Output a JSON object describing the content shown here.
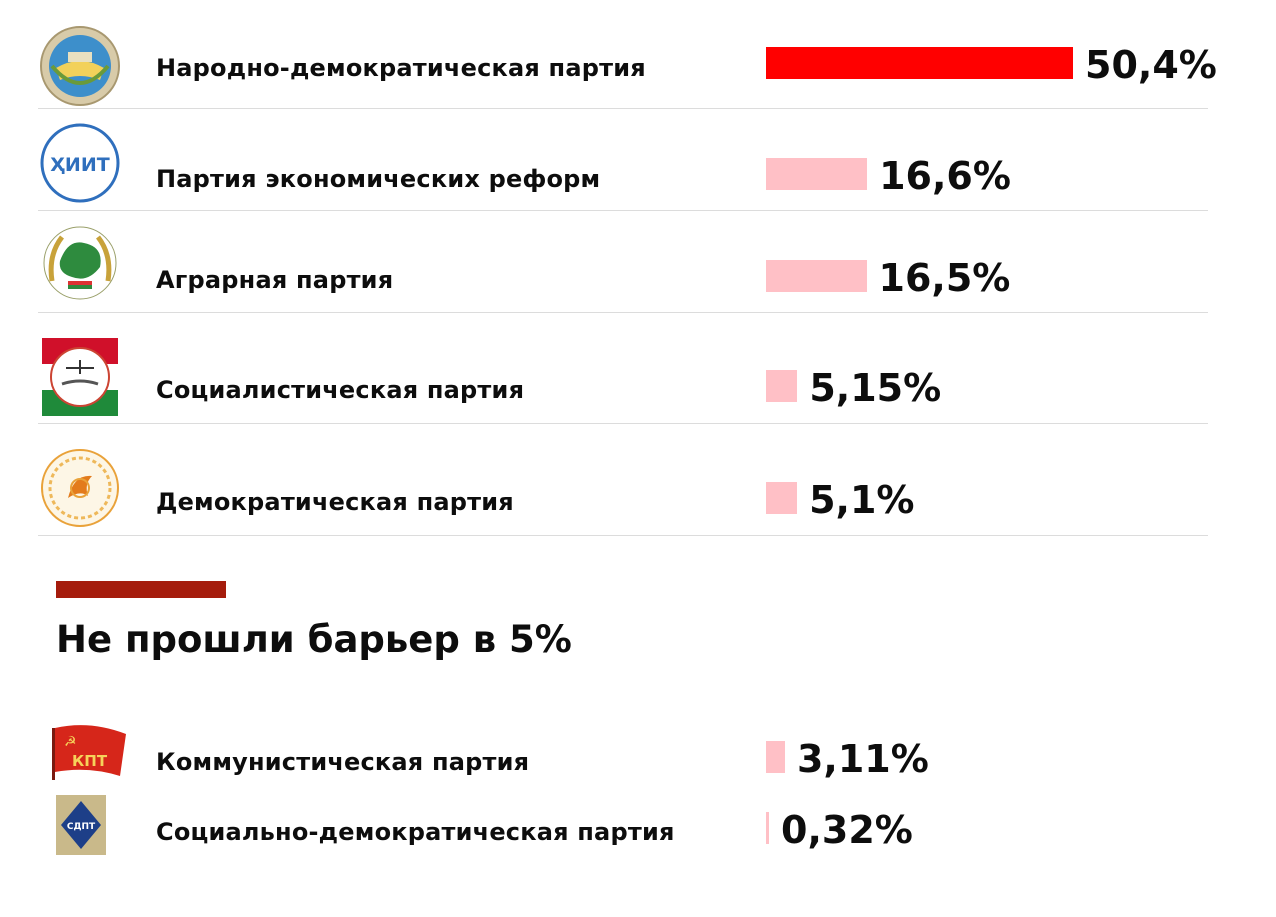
{
  "colors": {
    "winner": "#ff0000",
    "other": "#ffc0c6",
    "accent": "#a51c0c"
  },
  "passed": [
    {
      "name": "Народно-демократическая партия",
      "value_label": "50,4%",
      "value": 50.4,
      "logo": "pdpt-emblem"
    },
    {
      "name": "Партия экономических реформ",
      "value_label": "16,6%",
      "value": 16.6,
      "logo": "hiit-emblem"
    },
    {
      "name": "Аграрная партия",
      "value_label": "16,5%",
      "value": 16.5,
      "logo": "agrarian-emblem"
    },
    {
      "name": "Социалистическая партия",
      "value_label": "5,15%",
      "value": 5.15,
      "logo": "socialist-emblem"
    },
    {
      "name": "Демократическая партия",
      "value_label": "5,1%",
      "value": 5.1,
      "logo": "democratic-emblem"
    }
  ],
  "section": {
    "heading": "Не прошли барьер в 5%"
  },
  "failed": [
    {
      "name": "Коммунистическая партия",
      "value_label": "3,11%",
      "value": 3.11,
      "logo": "kpt-flag"
    },
    {
      "name": "Социально-демократическая партия",
      "value_label": "0,32%",
      "value": 0.32,
      "logo": "sdpt-emblem"
    }
  ],
  "logo_text": {
    "hiit": "ҲИИТ",
    "kpt": "КПТ",
    "sdpt": "СДПТ"
  },
  "chart_data": {
    "type": "bar",
    "categories": [
      "Народно-демократическая партия",
      "Партия экономических реформ",
      "Аграрная партия",
      "Социалистическая партия",
      "Демократическая партия",
      "Коммунистическая партия",
      "Социально-демократическая партия"
    ],
    "values": [
      50.4,
      16.6,
      16.5,
      5.15,
      5.1,
      3.11,
      0.32
    ],
    "value_labels": [
      "50,4%",
      "16,6%",
      "16,5%",
      "5,15%",
      "5,1%",
      "3,11%",
      "0,32%"
    ],
    "orientation": "horizontal",
    "grid": false,
    "legend": "none"
  }
}
